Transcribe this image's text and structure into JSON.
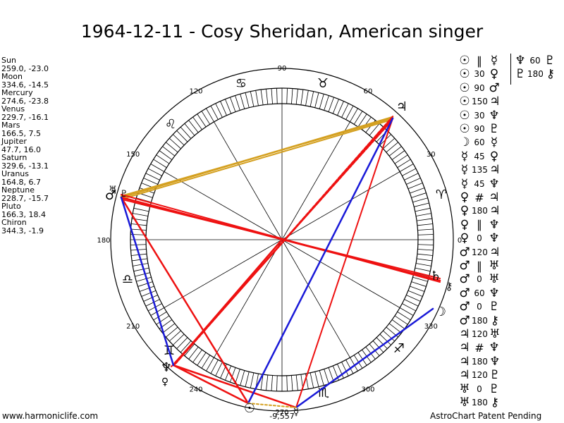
{
  "title": "1964-12-11 - Cosy Sheridan, American singer",
  "planets": [
    {
      "name": "Sun",
      "coords": "259.0, -23.0"
    },
    {
      "name": "Moon",
      "coords": "334.6, -14.5"
    },
    {
      "name": "Mercury",
      "coords": "274.6, -23.8"
    },
    {
      "name": "Venus",
      "coords": "229.7, -16.1"
    },
    {
      "name": "Mars",
      "coords": "166.5, 7.5"
    },
    {
      "name": "Jupiter",
      "coords": "47.7, 16.0"
    },
    {
      "name": "Saturn",
      "coords": "329.6, -13.1"
    },
    {
      "name": "Uranus",
      "coords": "164.8, 6.7"
    },
    {
      "name": "Neptune",
      "coords": "228.7, -15.7"
    },
    {
      "name": "Pluto",
      "coords": "166.3, 18.4"
    },
    {
      "name": "Chiron",
      "coords": "344.3, -1.9"
    }
  ],
  "degree_labels": [
    "90",
    "60",
    "30",
    "0",
    "330",
    "300",
    "270",
    "240",
    "210",
    "180",
    "150",
    "120"
  ],
  "bottom_label": "-9,557",
  "footer_left": "www.harmoniclife.com",
  "footer_right": "AstroChart Patent Pending",
  "zodiac_glyphs": [
    "♈",
    "♉",
    "♊",
    "♋",
    "♌",
    "♍",
    "♎",
    "♏",
    "♐",
    "♑",
    "♒",
    "♓"
  ],
  "planet_glyphs": {
    "sun": "☉",
    "moon": "☽",
    "mercury": "☿",
    "venus": "♀",
    "mars": "♂",
    "jupiter": "♃",
    "saturn": "♄",
    "uranus": "♅",
    "neptune": "♆",
    "pluto": "♇",
    "chiron": "⚷"
  },
  "aspect_list": [
    {
      "p1": "☉",
      "aspect": "∥",
      "p2": "☿"
    },
    {
      "p1": "☉",
      "aspect": "30",
      "p2": "♀"
    },
    {
      "p1": "☉",
      "aspect": "90",
      "p2": "♂"
    },
    {
      "p1": "☉",
      "aspect": "150",
      "p2": "♃"
    },
    {
      "p1": "☉",
      "aspect": "30",
      "p2": "♆"
    },
    {
      "p1": "☉",
      "aspect": "90",
      "p2": "♇"
    },
    {
      "p1": "☽",
      "aspect": "60",
      "p2": "☿"
    },
    {
      "p1": "☿",
      "aspect": "45",
      "p2": "♀"
    },
    {
      "p1": "☿",
      "aspect": "135",
      "p2": "♃"
    },
    {
      "p1": "☿",
      "aspect": "45",
      "p2": "♆"
    },
    {
      "p1": "♀",
      "aspect": "#",
      "p2": "♃"
    },
    {
      "p1": "♀",
      "aspect": "180",
      "p2": "♃"
    },
    {
      "p1": "♀",
      "aspect": "∥",
      "p2": "♆"
    },
    {
      "p1": "♀",
      "aspect": "0",
      "p2": "♆"
    },
    {
      "p1": "♂",
      "aspect": "120",
      "p2": "♃"
    },
    {
      "p1": "♂",
      "aspect": "∥",
      "p2": "♅"
    },
    {
      "p1": "♂",
      "aspect": "0",
      "p2": "♅"
    },
    {
      "p1": "♂",
      "aspect": "60",
      "p2": "♆"
    },
    {
      "p1": "♂",
      "aspect": "0",
      "p2": "♇"
    },
    {
      "p1": "♂",
      "aspect": "180",
      "p2": "⚷"
    },
    {
      "p1": "♃",
      "aspect": "120",
      "p2": "♅"
    },
    {
      "p1": "♃",
      "aspect": "#",
      "p2": "♆"
    },
    {
      "p1": "♃",
      "aspect": "180",
      "p2": "♆"
    },
    {
      "p1": "♃",
      "aspect": "120",
      "p2": "♇"
    },
    {
      "p1": "♅",
      "aspect": "0",
      "p2": "♇"
    },
    {
      "p1": "♅",
      "aspect": "180",
      "p2": "⚷"
    }
  ],
  "aspect_list_col2": [
    {
      "p1": "♆",
      "aspect": "60",
      "p2": "♇"
    },
    {
      "p1": "♇",
      "aspect": "180",
      "p2": "⚷"
    }
  ],
  "colors": {
    "red": "#ee1111",
    "blue": "#1a1ad8",
    "gold": "#d4a020",
    "ink": "#000000"
  }
}
